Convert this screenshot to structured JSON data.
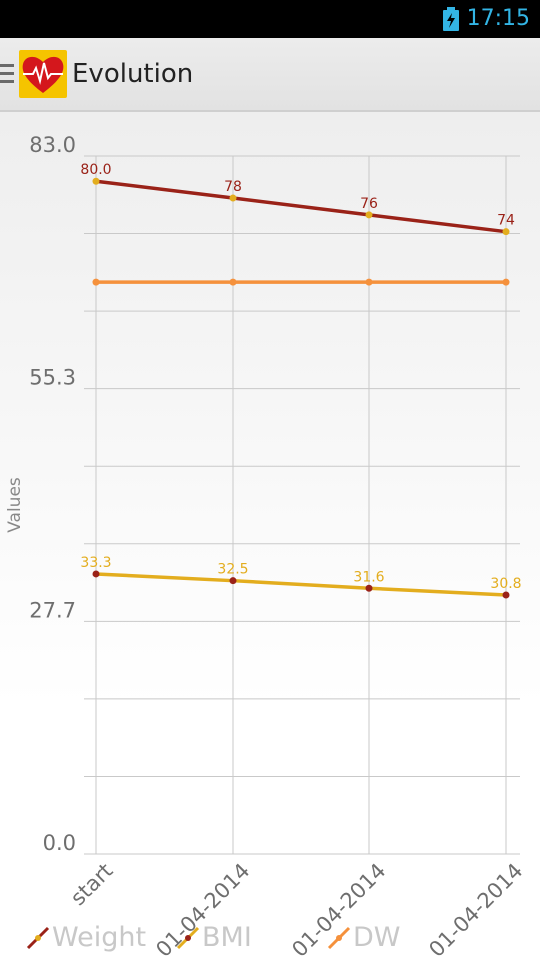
{
  "status_bar": {
    "time": "17:15",
    "battery_icon": "battery-charging-icon"
  },
  "action_bar": {
    "drawer_icon": "menu-icon",
    "logo_icon": "heart-pulse-icon",
    "title": "Evolution"
  },
  "colors": {
    "weight": "#9a2218",
    "bmi": "#e3ad1e",
    "dw": "#f5913c",
    "grid": "#c9c9c9",
    "axis_text": "#6e6e6e"
  },
  "chart_data": {
    "type": "line",
    "categories": [
      "start",
      "01-04-2014",
      "01-04-2014",
      "01-04-2014"
    ],
    "ylabel": "Values",
    "ylim": [
      0.0,
      83.0
    ],
    "y_ticks": [
      "83.0",
      "55.3",
      "27.7",
      "0.0"
    ],
    "grid": true,
    "legend_position": "bottom",
    "series": [
      {
        "name": "Weight",
        "values": [
          80.0,
          78,
          76,
          74
        ],
        "labels": [
          "80.0",
          "78",
          "76",
          "74"
        ],
        "line_color": "#9a2218",
        "point_color": "#e3ad1e"
      },
      {
        "name": "BMI",
        "values": [
          33.3,
          32.5,
          31.6,
          30.8
        ],
        "labels": [
          "33.3",
          "32.5",
          "31.6",
          "30.8"
        ],
        "line_color": "#e3ad1e",
        "point_color": "#9a2218"
      },
      {
        "name": "DW",
        "values": [
          68,
          68,
          68,
          68
        ],
        "labels": [
          "",
          "",
          "",
          ""
        ],
        "line_color": "#f5913c",
        "point_color": "#f5913c"
      }
    ]
  }
}
